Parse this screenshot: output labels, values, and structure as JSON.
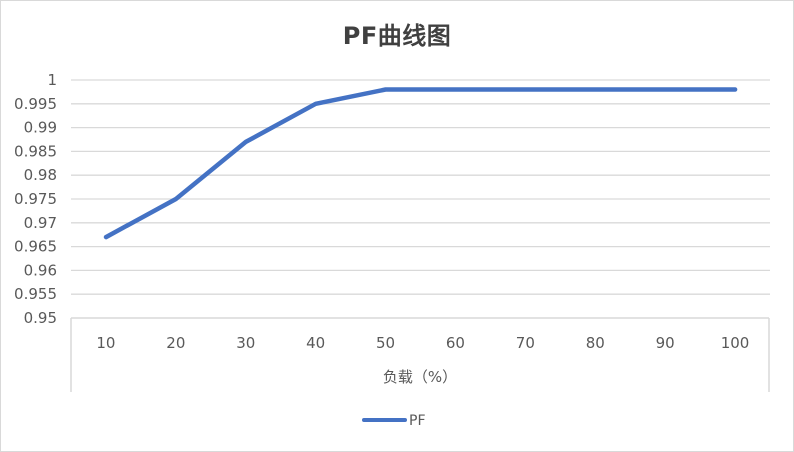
{
  "chart": {
    "title": "PF曲线图",
    "xlabel": "负载（%）",
    "legend": {
      "label": "PF",
      "color": "#4472c4"
    }
  },
  "chart_data": {
    "type": "line",
    "title": "PF曲线图",
    "xlabel": "负载（%）",
    "ylabel": "",
    "categories": [
      "10",
      "20",
      "30",
      "40",
      "50",
      "60",
      "70",
      "80",
      "90",
      "100"
    ],
    "series": [
      {
        "name": "PF",
        "color": "#4472c4",
        "values": [
          0.967,
          0.975,
          0.987,
          0.995,
          0.998,
          0.998,
          0.998,
          0.998,
          0.998,
          0.998
        ]
      }
    ],
    "ylim": [
      0.95,
      1.0
    ],
    "yticks": [
      "0.95",
      "0.955",
      "0.96",
      "0.965",
      "0.97",
      "0.975",
      "0.98",
      "0.985",
      "0.99",
      "0.995",
      "1"
    ],
    "grid": {
      "horizontal": true,
      "vertical": false,
      "color": "#d9d9d9"
    },
    "legend_position": "bottom"
  }
}
